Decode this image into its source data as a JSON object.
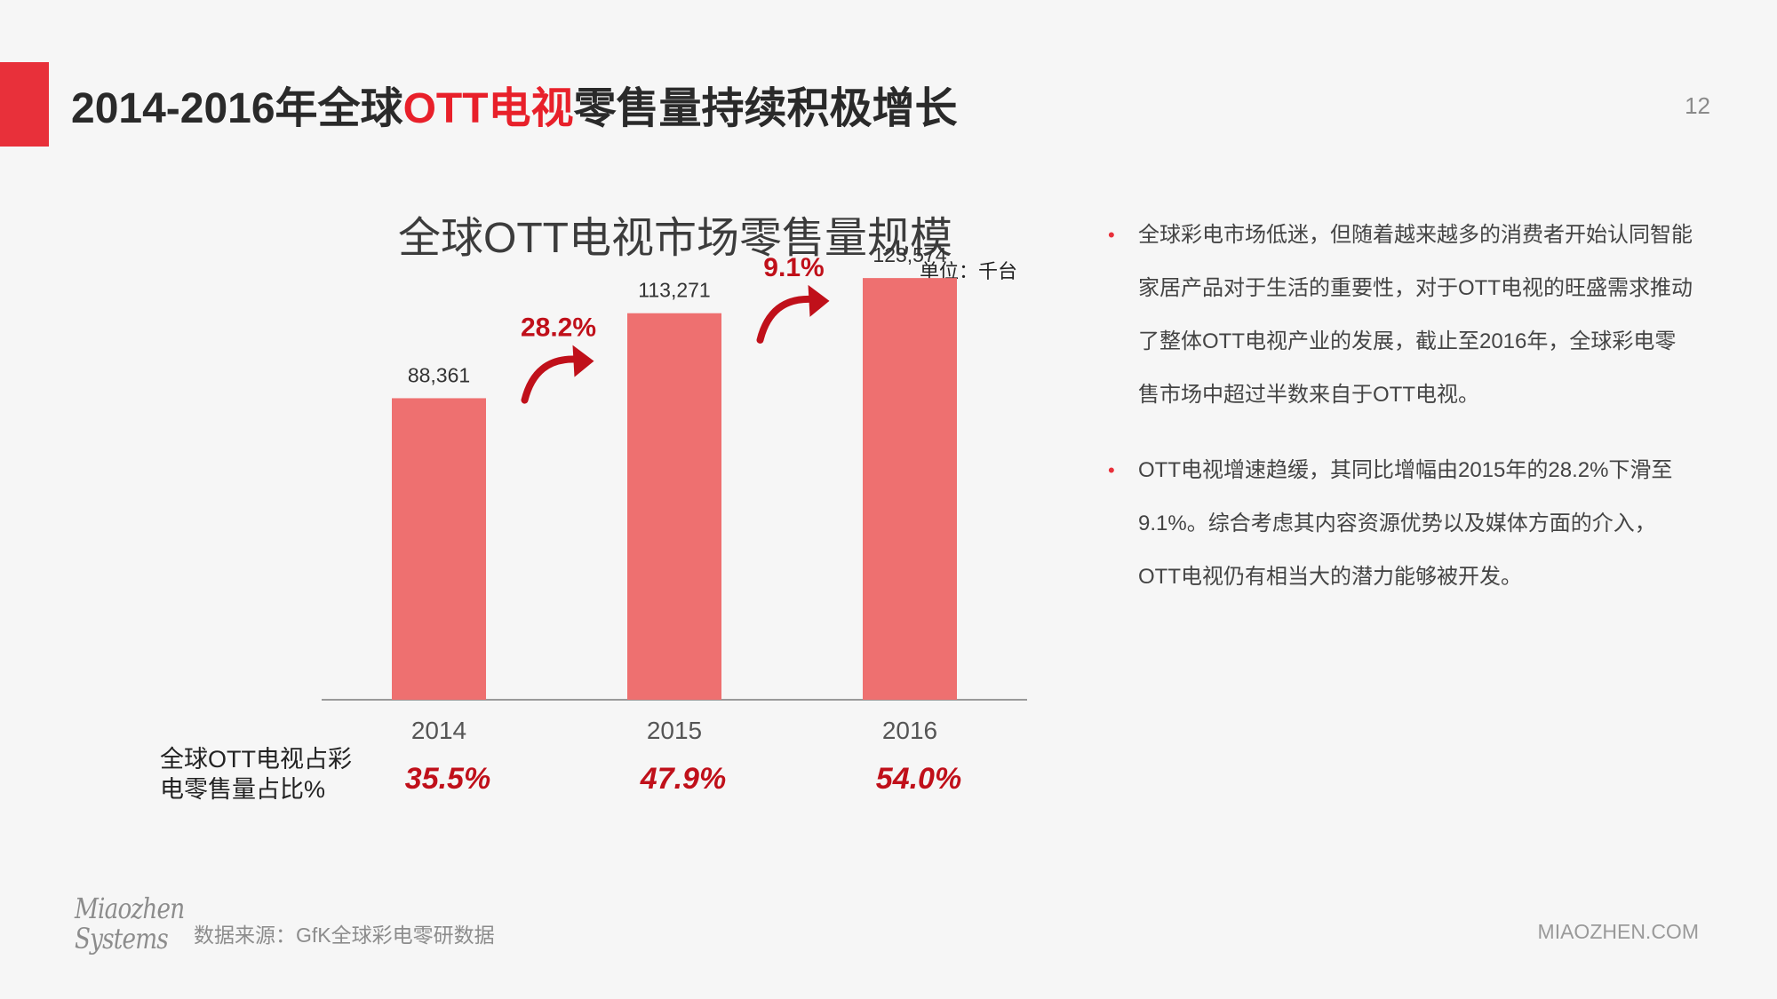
{
  "page": {
    "title_parts": [
      "2014-2016年全球",
      "OTT电视",
      "零售量持续积极增长"
    ],
    "page_number": "12",
    "source": "数据来源：GfK全球彩电零研数据",
    "footer_site": "MIAOZHEN.COM",
    "logo_text": "Miaozhen Systems"
  },
  "colors": {
    "accent": "#e8303a",
    "bar": "#ee7070",
    "growth": "#c0101a",
    "share": "#c0101a"
  },
  "chart_data": {
    "type": "bar",
    "title": "全球OTT电视市场零售量规模",
    "unit": "单位：千台",
    "categories": [
      "2014",
      "2015",
      "2016"
    ],
    "values": [
      88361,
      113271,
      123574
    ],
    "value_labels": [
      "88,361",
      "113,271",
      "123,574"
    ],
    "growth_labels": [
      "28.2%",
      "9.1%"
    ],
    "share_label": "全球OTT电视占彩电零售量占比%",
    "share_values": [
      "35.5%",
      "47.9%",
      "54.0%"
    ],
    "ylim": [
      0,
      140000
    ],
    "grid": false
  },
  "bullets": [
    "全球彩电市场低迷，但随着越来越多的消费者开始认同智能家居产品对于生活的重要性，对于OTT电视的旺盛需求推动了整体OTT电视产业的发展，截止至2016年，全球彩电零售市场中超过半数来自于OTT电视。",
    "OTT电视增速趋缓，其同比增幅由2015年的28.2%下滑至9.1%。综合考虑其内容资源优势以及媒体方面的介入，OTT电视仍有相当大的潜力能够被开发。"
  ]
}
